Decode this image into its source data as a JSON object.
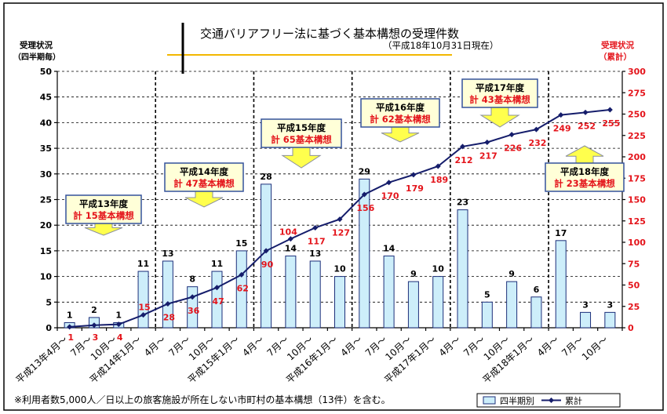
{
  "chart_data": {
    "type": "bar",
    "title": "交通バリアフリー法に基づく基本構想の受理件数",
    "subtitle": "（平成18年10月31日現在）",
    "ylabel_left": [
      "受理状況",
      "（四半期毎）"
    ],
    "ylabel_right": [
      "受理状況",
      "（累計）"
    ],
    "ylim_left": [
      0,
      50
    ],
    "ylim_right": [
      0,
      300
    ],
    "yticks_left": [
      0,
      5,
      10,
      15,
      20,
      25,
      30,
      35,
      40,
      45,
      50
    ],
    "yticks_right": [
      0,
      25,
      50,
      75,
      100,
      125,
      150,
      175,
      200,
      225,
      250,
      275,
      300
    ],
    "grid": true,
    "legend": "bottom-right",
    "categories": [
      "平成13年4月～",
      "7月～",
      "10月～",
      "平成14年1月～",
      "4月～",
      "7月～",
      "10月～",
      "平成15年1月～",
      "4月～",
      "7月～",
      "10月～",
      "平成16年1月～",
      "4月～",
      "7月～",
      "10月～",
      "平成17年1月～",
      "4月～",
      "7月～",
      "10月～",
      "平成18年1月～",
      "4月～",
      "7月～",
      "10月～"
    ],
    "series": [
      {
        "name": "四半期別",
        "type": "bar",
        "axis": "left",
        "values": [
          1,
          2,
          1,
          11,
          13,
          8,
          11,
          15,
          28,
          14,
          13,
          10,
          29,
          14,
          9,
          10,
          23,
          5,
          9,
          6,
          17,
          3,
          3
        ]
      },
      {
        "name": "累計",
        "type": "line",
        "axis": "right",
        "values": [
          1,
          3,
          4,
          15,
          28,
          36,
          47,
          62,
          90,
          104,
          117,
          127,
          156,
          170,
          179,
          189,
          212,
          217,
          226,
          232,
          249,
          252,
          255
        ]
      }
    ],
    "annotations": [
      {
        "label": "平成13年度",
        "total": "計 15基本構想"
      },
      {
        "label": "平成14年度",
        "total": "計 47基本構想"
      },
      {
        "label": "平成15年度",
        "total": "計 65基本構想"
      },
      {
        "label": "平成16年度",
        "total": "計 62基本構想"
      },
      {
        "label": "平成17年度",
        "total": "計 43基本構想"
      },
      {
        "label": "平成18年度",
        "total": "計 23基本構想"
      }
    ],
    "note": "※利用者数5,000人／日以上の旅客施設が所在しない市町村の基本構想（13件）を含む。"
  },
  "colors": {
    "bar_fill": "#cdeefa",
    "bar_stroke": "#1c2f7a",
    "line": "#151d6b",
    "red": "#e4141b",
    "callout_fill": "#ffffd8",
    "callout_stroke": "#34529c",
    "arrow_fill": "#ffff4d",
    "title_rule": "#f2b700"
  }
}
